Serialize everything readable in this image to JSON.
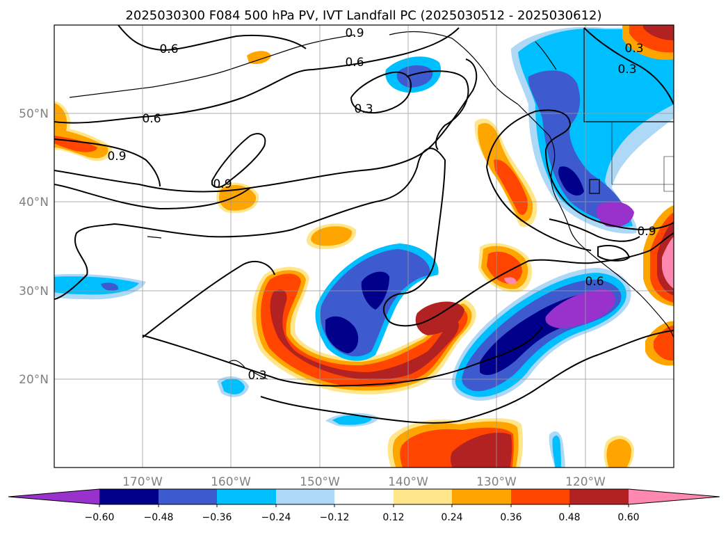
{
  "title": "2025030300 F084 500 hPa PV, IVT Landfall PC (2025030512 - 2025030612)",
  "lat_labels": [
    "50°N",
    "40°N",
    "30°N",
    "20°N"
  ],
  "lon_labels": [
    "170°W",
    "160°W",
    "150°W",
    "140°W",
    "130°W",
    "120°W"
  ],
  "contour_labels": [
    "0.6",
    "0.9",
    "0.6",
    "0.3",
    "0.6",
    "0.9",
    "0.9",
    "0.3",
    "0.3",
    "0.9",
    "0.6",
    "0.3"
  ],
  "colorbar": {
    "ticks": [
      "−0.60",
      "−0.48",
      "−0.36",
      "−0.24",
      "−0.12",
      "0.12",
      "0.24",
      "0.36",
      "0.48",
      "0.60"
    ],
    "colors": [
      "#9932cc",
      "#00008b",
      "#3d5acf",
      "#00bfff",
      "#add8f6",
      "#ffffff",
      "#ffe68a",
      "#ffa500",
      "#ff4500",
      "#b22222",
      "#ff88b0"
    ]
  }
}
